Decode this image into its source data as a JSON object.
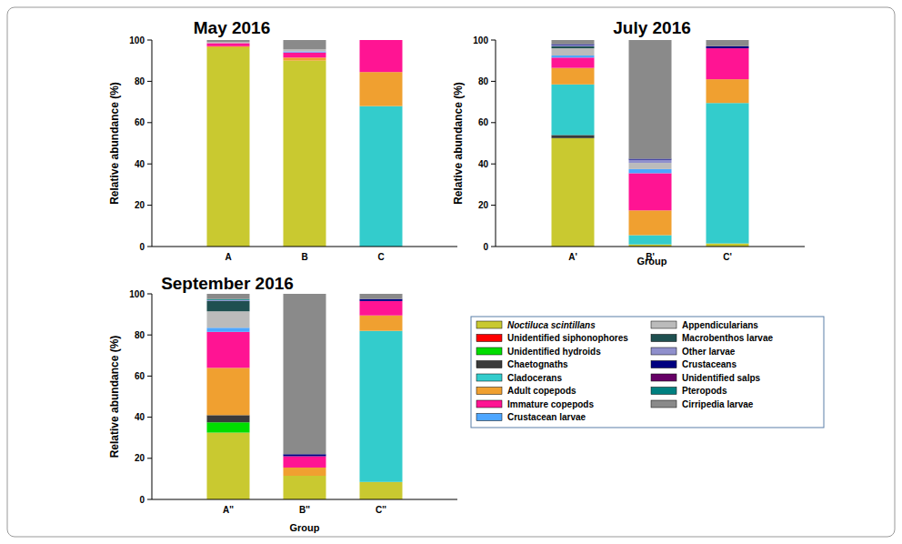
{
  "chart_data": [
    {
      "type": "bar",
      "stacked": true,
      "title": "May 2016",
      "y_label": "Relative abundance (%)",
      "categories": [
        "A",
        "B",
        "C"
      ],
      "ylim": [
        0,
        100
      ],
      "yticks": [
        0,
        20,
        40,
        60,
        80,
        100
      ],
      "series": [
        {
          "name": "Noctiluca scintillans",
          "color": "#c9c930",
          "values": [
            96.5,
            90,
            0
          ]
        },
        {
          "name": "Unidentified siphonophores",
          "color": "#ff0000",
          "values": [
            0,
            0,
            0
          ]
        },
        {
          "name": "Unidentified hydroids",
          "color": "#00dd00",
          "values": [
            0,
            0,
            0
          ]
        },
        {
          "name": "Chaetognaths",
          "color": "#3a3a3a",
          "values": [
            0,
            0,
            0
          ]
        },
        {
          "name": "Cladocerans",
          "color": "#33cccc",
          "values": [
            0,
            0,
            68
          ]
        },
        {
          "name": "Adult copepods",
          "color": "#f0a030",
          "values": [
            0.5,
            1.5,
            16.5
          ]
        },
        {
          "name": "Immature copepods",
          "color": "#ff1493",
          "values": [
            1.5,
            2.5,
            15.5
          ]
        },
        {
          "name": "Crustacean larvae",
          "color": "#4da6ff",
          "values": [
            0,
            0.5,
            0
          ]
        },
        {
          "name": "Appendicularians",
          "color": "#bbbbbb",
          "values": [
            0.5,
            1,
            0
          ]
        },
        {
          "name": "Macrobenthos larvae",
          "color": "#1f5050",
          "values": [
            0,
            0,
            0
          ]
        },
        {
          "name": "Other larvae",
          "color": "#9090cc",
          "values": [
            0,
            0,
            0
          ]
        },
        {
          "name": "Crustaceans",
          "color": "#000080",
          "values": [
            0,
            0,
            0
          ]
        },
        {
          "name": "Unidentified salps",
          "color": "#660066",
          "values": [
            0,
            0,
            0
          ]
        },
        {
          "name": "Pteropods",
          "color": "#008080",
          "values": [
            0,
            0,
            0
          ]
        },
        {
          "name": "Cirripedia larvae",
          "color": "#8a8a8a",
          "values": [
            1,
            4.5,
            0
          ]
        }
      ]
    },
    {
      "type": "bar",
      "stacked": true,
      "title": "July 2016",
      "y_label": "Relative abundance (%)",
      "x_label": "Group",
      "categories": [
        "A'",
        "B'",
        "C'"
      ],
      "ylim": [
        0,
        100
      ],
      "yticks": [
        0,
        20,
        40,
        60,
        80,
        100
      ],
      "series": [
        {
          "name": "Noctiluca scintillans",
          "color": "#c9c930",
          "values": [
            52.5,
            1,
            1.5
          ]
        },
        {
          "name": "Unidentified siphonophores",
          "color": "#ff0000",
          "values": [
            0,
            0,
            0
          ]
        },
        {
          "name": "Unidentified hydroids",
          "color": "#00dd00",
          "values": [
            0,
            0,
            0
          ]
        },
        {
          "name": "Chaetognaths",
          "color": "#3a3a3a",
          "values": [
            1.5,
            0,
            0
          ]
        },
        {
          "name": "Cladocerans",
          "color": "#33cccc",
          "values": [
            24.5,
            4.5,
            68
          ]
        },
        {
          "name": "Adult copepods",
          "color": "#f0a030",
          "values": [
            8,
            12,
            11.5
          ]
        },
        {
          "name": "Immature copepods",
          "color": "#ff1493",
          "values": [
            5,
            18,
            15
          ]
        },
        {
          "name": "Crustacean larvae",
          "color": "#4da6ff",
          "values": [
            1,
            2,
            0
          ]
        },
        {
          "name": "Appendicularians",
          "color": "#bbbbbb",
          "values": [
            3.5,
            3,
            0
          ]
        },
        {
          "name": "Macrobenthos larvae",
          "color": "#1f5050",
          "values": [
            1,
            0,
            0
          ]
        },
        {
          "name": "Other larvae",
          "color": "#9090cc",
          "values": [
            0.5,
            1.5,
            0
          ]
        },
        {
          "name": "Crustaceans",
          "color": "#000080",
          "values": [
            0.5,
            0.5,
            1
          ]
        },
        {
          "name": "Unidentified salps",
          "color": "#660066",
          "values": [
            0,
            0,
            0
          ]
        },
        {
          "name": "Pteropods",
          "color": "#008080",
          "values": [
            0,
            0,
            0
          ]
        },
        {
          "name": "Cirripedia larvae",
          "color": "#8a8a8a",
          "values": [
            2,
            57.5,
            3
          ]
        }
      ]
    },
    {
      "type": "bar",
      "stacked": true,
      "title": "September 2016",
      "y_label": "Relative abundance (%)",
      "x_label": "Group",
      "categories": [
        "A''",
        "B''",
        "C''"
      ],
      "ylim": [
        0,
        100
      ],
      "yticks": [
        0,
        20,
        40,
        60,
        80,
        100
      ],
      "series": [
        {
          "name": "Noctiluca scintillans",
          "color": "#c9c930",
          "values": [
            32.5,
            11.5,
            8.5
          ]
        },
        {
          "name": "Unidentified siphonophores",
          "color": "#ff0000",
          "values": [
            0,
            0,
            0
          ]
        },
        {
          "name": "Unidentified hydroids",
          "color": "#00dd00",
          "values": [
            5,
            0,
            0
          ]
        },
        {
          "name": "Chaetognaths",
          "color": "#3a3a3a",
          "values": [
            3.5,
            0,
            0
          ]
        },
        {
          "name": "Cladocerans",
          "color": "#33cccc",
          "values": [
            0,
            0,
            73.5
          ]
        },
        {
          "name": "Adult copepods",
          "color": "#f0a030",
          "values": [
            23,
            4,
            7.5
          ]
        },
        {
          "name": "Immature copepods",
          "color": "#ff1493",
          "values": [
            17.5,
            5.5,
            7
          ]
        },
        {
          "name": "Crustacean larvae",
          "color": "#4da6ff",
          "values": [
            2,
            0,
            0
          ]
        },
        {
          "name": "Appendicularians",
          "color": "#bbbbbb",
          "values": [
            8,
            0,
            0
          ]
        },
        {
          "name": "Macrobenthos larvae",
          "color": "#1f5050",
          "values": [
            5,
            0,
            0
          ]
        },
        {
          "name": "Other larvae",
          "color": "#9090cc",
          "values": [
            0.5,
            0,
            0
          ]
        },
        {
          "name": "Crustaceans",
          "color": "#000080",
          "values": [
            0,
            1,
            1
          ]
        },
        {
          "name": "Unidentified salps",
          "color": "#660066",
          "values": [
            0,
            0,
            0
          ]
        },
        {
          "name": "Pteropods",
          "color": "#008080",
          "values": [
            0.5,
            0,
            0
          ]
        },
        {
          "name": "Cirripedia larvae",
          "color": "#8a8a8a",
          "values": [
            2.5,
            78,
            2.5
          ]
        }
      ]
    }
  ]
}
